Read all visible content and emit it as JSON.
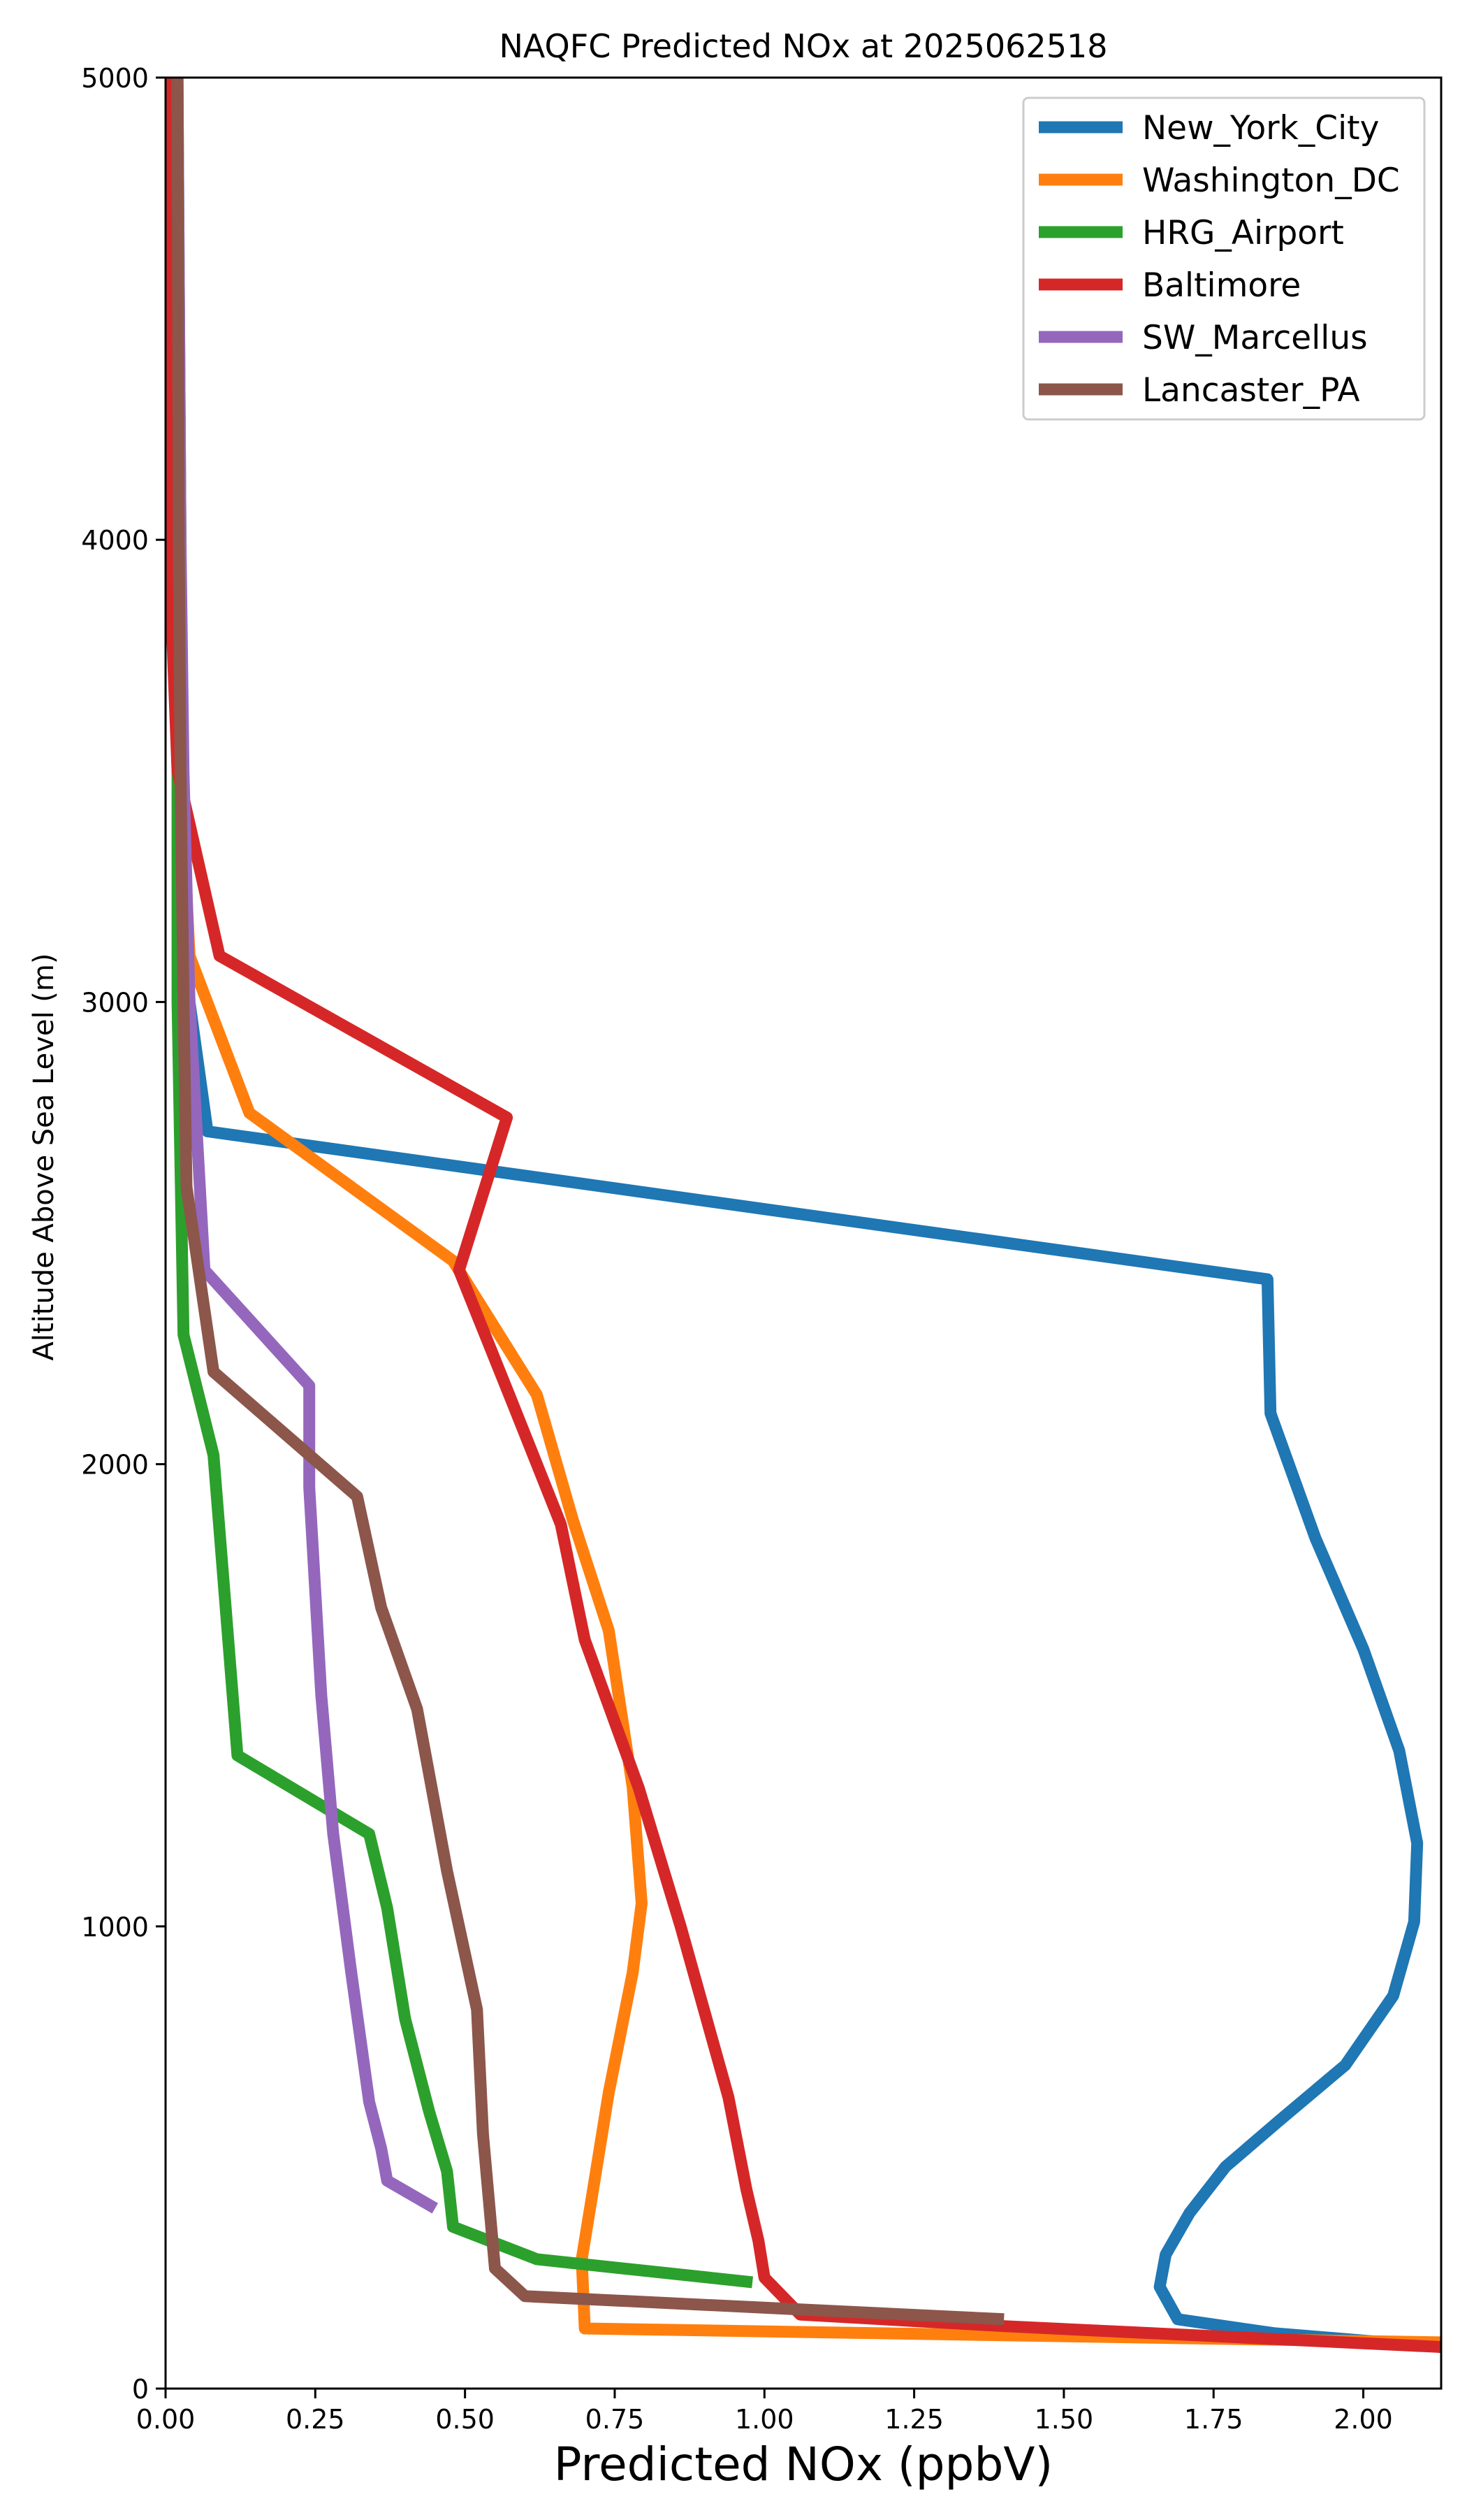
{
  "chart_data": {
    "type": "line",
    "title": "NAQFC Predicted NOx at 2025062518",
    "xlabel": "Predicted NOx (ppbV)",
    "ylabel": "Altitude Above Sea Level (m)",
    "xlim": [
      0,
      2.13
    ],
    "ylim": [
      0,
      5000
    ],
    "xticks": [
      0.0,
      0.25,
      0.5,
      0.75,
      1.0,
      1.25,
      1.5,
      1.75,
      2.0
    ],
    "xtick_labels": [
      "0.00",
      "0.25",
      "0.50",
      "0.75",
      "1.00",
      "1.25",
      "1.50",
      "1.75",
      "2.00"
    ],
    "yticks": [
      0,
      1000,
      2000,
      3000,
      4000,
      5000
    ],
    "ytick_labels": [
      "0",
      "1000",
      "2000",
      "3000",
      "4000",
      "5000"
    ],
    "grid": false,
    "legend_position": "top-right",
    "series": [
      {
        "name": "New_York_City",
        "color": "#1f77b4",
        "points": [
          [
            0.005,
            5000
          ],
          [
            0.01,
            4000
          ],
          [
            0.02,
            3500
          ],
          [
            0.04,
            3000
          ],
          [
            0.07,
            2720
          ],
          [
            1.84,
            2400
          ],
          [
            1.845,
            2110
          ],
          [
            1.92,
            1840
          ],
          [
            2.0,
            1600
          ],
          [
            2.06,
            1380
          ],
          [
            2.09,
            1180
          ],
          [
            2.085,
            1010
          ],
          [
            2.05,
            850
          ],
          [
            1.97,
            700
          ],
          [
            1.86,
            580
          ],
          [
            1.77,
            480
          ],
          [
            1.71,
            380
          ],
          [
            1.67,
            290
          ],
          [
            1.66,
            220
          ],
          [
            1.69,
            150
          ],
          [
            1.85,
            120
          ],
          [
            2.13,
            90
          ]
        ]
      },
      {
        "name": "Washington_DC",
        "color": "#ff7f0e",
        "points": [
          [
            0.01,
            5000
          ],
          [
            0.02,
            4000
          ],
          [
            0.025,
            3500
          ],
          [
            0.04,
            3100
          ],
          [
            0.14,
            2760
          ],
          [
            0.48,
            2440
          ],
          [
            0.62,
            2150
          ],
          [
            0.68,
            1880
          ],
          [
            0.74,
            1640
          ],
          [
            0.78,
            1300
          ],
          [
            0.795,
            1050
          ],
          [
            0.78,
            900
          ],
          [
            0.74,
            640
          ],
          [
            0.71,
            400
          ],
          [
            0.695,
            280
          ],
          [
            0.7,
            130
          ],
          [
            2.13,
            100
          ]
        ]
      },
      {
        "name": "HRG_Airport",
        "color": "#2ca02c",
        "points": [
          [
            0.02,
            5000
          ],
          [
            0.025,
            4000
          ],
          [
            0.02,
            3500
          ],
          [
            0.02,
            3000
          ],
          [
            0.03,
            2280
          ],
          [
            0.08,
            2020
          ],
          [
            0.12,
            1370
          ],
          [
            0.34,
            1200
          ],
          [
            0.37,
            1040
          ],
          [
            0.4,
            800
          ],
          [
            0.44,
            600
          ],
          [
            0.47,
            470
          ],
          [
            0.48,
            350
          ],
          [
            0.62,
            280
          ],
          [
            0.98,
            230
          ]
        ]
      },
      {
        "name": "Baltimore",
        "color": "#d62728",
        "points": [
          [
            0.003,
            5000
          ],
          [
            0.005,
            4000
          ],
          [
            0.02,
            3500
          ],
          [
            0.09,
            3100
          ],
          [
            0.57,
            2750
          ],
          [
            0.49,
            2420
          ],
          [
            0.58,
            2130
          ],
          [
            0.66,
            1870
          ],
          [
            0.7,
            1620
          ],
          [
            0.79,
            1300
          ],
          [
            0.86,
            1000
          ],
          [
            0.94,
            630
          ],
          [
            0.97,
            430
          ],
          [
            0.99,
            320
          ],
          [
            1.0,
            240
          ],
          [
            1.06,
            160
          ],
          [
            1.4,
            135
          ],
          [
            2.13,
            90
          ]
        ]
      },
      {
        "name": "SW_Marcellus",
        "color": "#9467bd",
        "points": [
          [
            0.02,
            5000
          ],
          [
            0.025,
            4000
          ],
          [
            0.03,
            3500
          ],
          [
            0.04,
            3000
          ],
          [
            0.065,
            2420
          ],
          [
            0.24,
            2170
          ],
          [
            0.24,
            1950
          ],
          [
            0.26,
            1500
          ],
          [
            0.28,
            1200
          ],
          [
            0.31,
            900
          ],
          [
            0.34,
            620
          ],
          [
            0.36,
            520
          ],
          [
            0.37,
            450
          ],
          [
            0.45,
            390
          ]
        ]
      },
      {
        "name": "Lancaster_PA",
        "color": "#8c564b",
        "points": [
          [
            0.02,
            5000
          ],
          [
            0.022,
            4000
          ],
          [
            0.025,
            3500
          ],
          [
            0.03,
            3000
          ],
          [
            0.035,
            2600
          ],
          [
            0.08,
            2200
          ],
          [
            0.32,
            1930
          ],
          [
            0.36,
            1690
          ],
          [
            0.42,
            1470
          ],
          [
            0.47,
            1120
          ],
          [
            0.52,
            820
          ],
          [
            0.53,
            550
          ],
          [
            0.55,
            260
          ],
          [
            0.6,
            200
          ],
          [
            1.4,
            150
          ]
        ]
      }
    ]
  }
}
